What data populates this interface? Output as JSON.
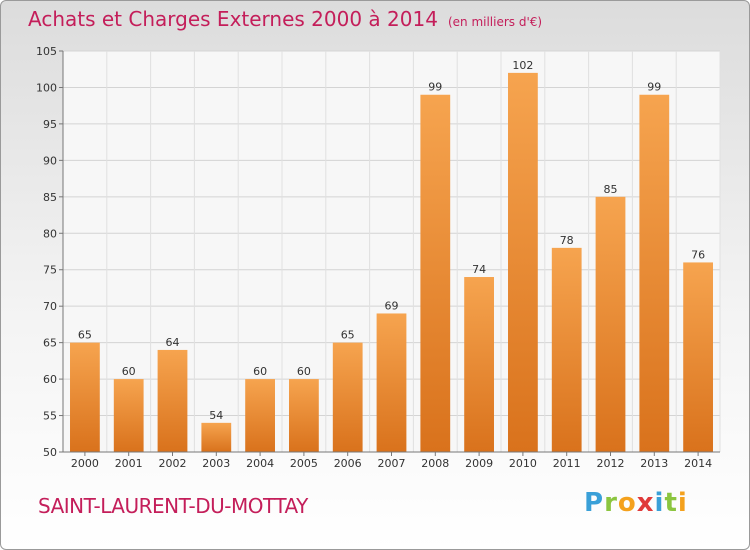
{
  "title": "Achats et Charges Externes 2000 à 2014",
  "subtitle": "(en milliers d'€)",
  "place": "SAINT-LAURENT-DU-MOTTAY",
  "brand": {
    "letters": [
      "P",
      "r",
      "o",
      "x",
      "i",
      "t",
      "i"
    ],
    "colors": [
      "#3aa0d8",
      "#8bc53f",
      "#f4a11d",
      "#e03a3a",
      "#3aa0d8",
      "#8bc53f",
      "#f4a11d"
    ]
  },
  "chart_data": {
    "type": "bar",
    "categories": [
      "2000",
      "2001",
      "2002",
      "2003",
      "2004",
      "2005",
      "2006",
      "2007",
      "2008",
      "2009",
      "2010",
      "2011",
      "2012",
      "2013",
      "2014"
    ],
    "values": [
      65,
      60,
      64,
      54,
      60,
      60,
      65,
      69,
      99,
      74,
      102,
      78,
      85,
      99,
      76
    ],
    "ylim": [
      50,
      105
    ],
    "yticks": [
      50,
      55,
      60,
      65,
      70,
      75,
      80,
      85,
      90,
      95,
      100,
      105
    ],
    "grid": true,
    "bar_color_top": "#f6a44f",
    "bar_color_bottom": "#d9721c"
  }
}
